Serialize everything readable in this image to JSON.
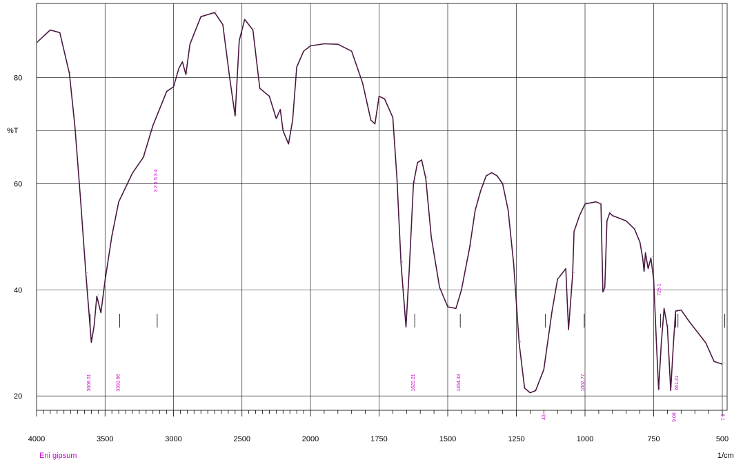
{
  "chart_data": {
    "type": "line",
    "title": "",
    "xlabel": "1/cm",
    "ylabel": "%T",
    "sample_name": "Eni gipsum",
    "xlim": [
      4000,
      500
    ],
    "ylim": [
      17.3,
      94
    ],
    "x_ticks": [
      "4000",
      "3500",
      "3000",
      "2500",
      "2000",
      "1750",
      "1500",
      "1250",
      "1000",
      "750",
      "500"
    ],
    "y_ticks": [
      "80",
      "60",
      "40",
      "20"
    ],
    "grid": true,
    "colors": {
      "spectrum": "#4a1942",
      "peak_label": "#cc00cc",
      "grid": "#000000"
    },
    "series": [
      {
        "points": [
          [
            4000,
            86.6
          ],
          [
            3900,
            89.0
          ],
          [
            3830,
            88.5
          ],
          [
            3760,
            80.8
          ],
          [
            3720,
            70.8
          ],
          [
            3680,
            57.5
          ],
          [
            3640,
            43.0
          ],
          [
            3600,
            30.1
          ],
          [
            3580,
            33.2
          ],
          [
            3560,
            38.8
          ],
          [
            3530,
            35.7
          ],
          [
            3500,
            41.8
          ],
          [
            3450,
            50.2
          ],
          [
            3400,
            56.6
          ],
          [
            3300,
            62.0
          ],
          [
            3220,
            65.0
          ],
          [
            3150,
            71.0
          ],
          [
            3050,
            77.4
          ],
          [
            3000,
            78.3
          ],
          [
            2960,
            81.8
          ],
          [
            2935,
            83.0
          ],
          [
            2910,
            80.6
          ],
          [
            2880,
            86.3
          ],
          [
            2800,
            91.5
          ],
          [
            2700,
            92.3
          ],
          [
            2640,
            90.0
          ],
          [
            2590,
            80.0
          ],
          [
            2550,
            72.8
          ],
          [
            2520,
            87.0
          ],
          [
            2480,
            91.0
          ],
          [
            2420,
            89.0
          ],
          [
            2370,
            78.0
          ],
          [
            2300,
            76.5
          ],
          [
            2250,
            72.3
          ],
          [
            2220,
            74.0
          ],
          [
            2200,
            70.0
          ],
          [
            2160,
            67.5
          ],
          [
            2130,
            72.0
          ],
          [
            2100,
            82.0
          ],
          [
            2050,
            85.0
          ],
          [
            2000,
            86.0
          ],
          [
            1950,
            86.4
          ],
          [
            1900,
            86.3
          ],
          [
            1850,
            85.0
          ],
          [
            1810,
            79.0
          ],
          [
            1780,
            72.0
          ],
          [
            1765,
            71.3
          ],
          [
            1750,
            76.5
          ],
          [
            1730,
            76.0
          ],
          [
            1700,
            72.5
          ],
          [
            1685,
            61.0
          ],
          [
            1670,
            45.0
          ],
          [
            1652,
            33.0
          ],
          [
            1640,
            44.0
          ],
          [
            1625,
            60.0
          ],
          [
            1610,
            64.0
          ],
          [
            1595,
            64.5
          ],
          [
            1580,
            61.0
          ],
          [
            1560,
            50.0
          ],
          [
            1530,
            40.5
          ],
          [
            1500,
            36.8
          ],
          [
            1470,
            36.5
          ],
          [
            1450,
            40.0
          ],
          [
            1420,
            48.0
          ],
          [
            1400,
            55.0
          ],
          [
            1380,
            58.7
          ],
          [
            1360,
            61.5
          ],
          [
            1340,
            62.1
          ],
          [
            1320,
            61.5
          ],
          [
            1300,
            60.0
          ],
          [
            1280,
            55.0
          ],
          [
            1260,
            45.0
          ],
          [
            1240,
            30.0
          ],
          [
            1220,
            21.5
          ],
          [
            1200,
            20.6
          ],
          [
            1180,
            21.0
          ],
          [
            1150,
            25.0
          ],
          [
            1120,
            36.0
          ],
          [
            1100,
            42.0
          ],
          [
            1070,
            44.0
          ],
          [
            1060,
            32.5
          ],
          [
            1045,
            43.0
          ],
          [
            1040,
            51.0
          ],
          [
            1020,
            54.0
          ],
          [
            1000,
            56.2
          ],
          [
            960,
            56.6
          ],
          [
            942,
            56.2
          ],
          [
            935,
            39.6
          ],
          [
            928,
            40.5
          ],
          [
            920,
            53.0
          ],
          [
            910,
            54.5
          ],
          [
            900,
            54.0
          ],
          [
            850,
            53.0
          ],
          [
            820,
            51.5
          ],
          [
            800,
            49.0
          ],
          [
            790,
            46.0
          ],
          [
            785,
            43.5
          ],
          [
            780,
            47.0
          ],
          [
            770,
            44.0
          ],
          [
            760,
            46.0
          ],
          [
            750,
            42.0
          ],
          [
            740,
            30.0
          ],
          [
            732,
            21.2
          ],
          [
            722,
            30.0
          ],
          [
            712,
            36.5
          ],
          [
            700,
            33.0
          ],
          [
            688,
            21.0
          ],
          [
            678,
            30.0
          ],
          [
            670,
            36.0
          ],
          [
            650,
            36.2
          ],
          [
            620,
            34.0
          ],
          [
            590,
            32.0
          ],
          [
            560,
            30.0
          ],
          [
            530,
            26.5
          ],
          [
            500,
            26.0
          ]
        ]
      }
    ],
    "peaks": [
      {
        "x": 3608.01,
        "label": "3608.01"
      },
      {
        "x": 3392.86,
        "label": "3392.86"
      },
      {
        "x": 1620.21,
        "label": "1620.21"
      },
      {
        "x": 1454.33,
        "label": "1454.33"
      },
      {
        "x": 1002.77,
        "label": "1002.77"
      },
      {
        "x": 725.1,
        "label": "725.1"
      },
      {
        "x": 661.41,
        "label": "661.41"
      },
      {
        "x": 669.8,
        "label": "9.08"
      },
      {
        "x": 1144.0,
        "label": "43"
      },
      {
        "x": 3119,
        "label": "3 2 1 5 3 4"
      },
      {
        "x": 491,
        "label": "7 9"
      }
    ]
  }
}
